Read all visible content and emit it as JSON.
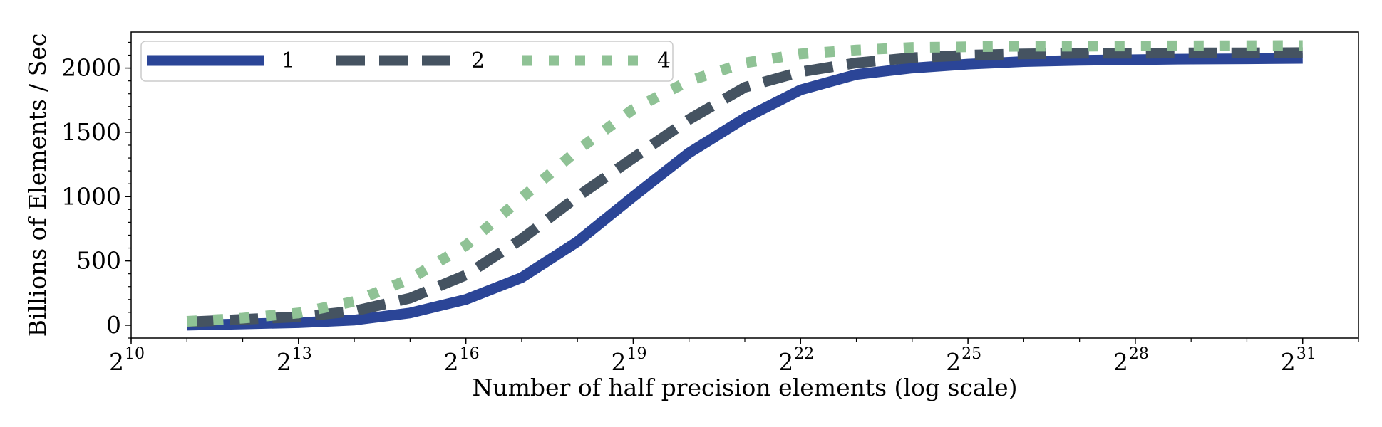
{
  "chart_data": {
    "type": "line",
    "xlabel": "Number of half precision elements (log scale)",
    "ylabel": "Billions of Elements / Sec",
    "x_scale": "log2",
    "x_tick_base": "2",
    "x_tick_exponents": [
      "10",
      "13",
      "16",
      "19",
      "22",
      "25",
      "28",
      "31"
    ],
    "y_ticks": [
      "0",
      "500",
      "1000",
      "1500",
      "2000"
    ],
    "xlim_exponent": [
      10,
      32
    ],
    "ylim": [
      -100,
      2280
    ],
    "grid": false,
    "legend_placement": "top-left",
    "x": [
      11,
      12,
      13,
      14,
      15,
      16,
      17,
      18,
      19,
      20,
      21,
      22,
      23,
      24,
      25,
      26,
      27,
      28,
      29,
      30,
      31
    ],
    "series": [
      {
        "name": "1",
        "color": "#2b4597",
        "style": "solid",
        "values": [
          0,
          10,
          20,
          40,
          95,
          200,
          370,
          650,
          1000,
          1340,
          1610,
          1830,
          1950,
          2000,
          2030,
          2050,
          2060,
          2065,
          2070,
          2072,
          2075
        ]
      },
      {
        "name": "2",
        "color": "#455361",
        "style": "dashed",
        "values": [
          25,
          45,
          65,
          110,
          210,
          390,
          670,
          1000,
          1300,
          1600,
          1850,
          1970,
          2040,
          2080,
          2100,
          2110,
          2115,
          2115,
          2118,
          2118,
          2120
        ]
      },
      {
        "name": "4",
        "color": "#8fc295",
        "style": "dotted",
        "values": [
          30,
          55,
          95,
          185,
          360,
          620,
          990,
          1360,
          1680,
          1900,
          2040,
          2110,
          2140,
          2160,
          2165,
          2170,
          2170,
          2172,
          2173,
          2174,
          2175
        ]
      }
    ]
  }
}
